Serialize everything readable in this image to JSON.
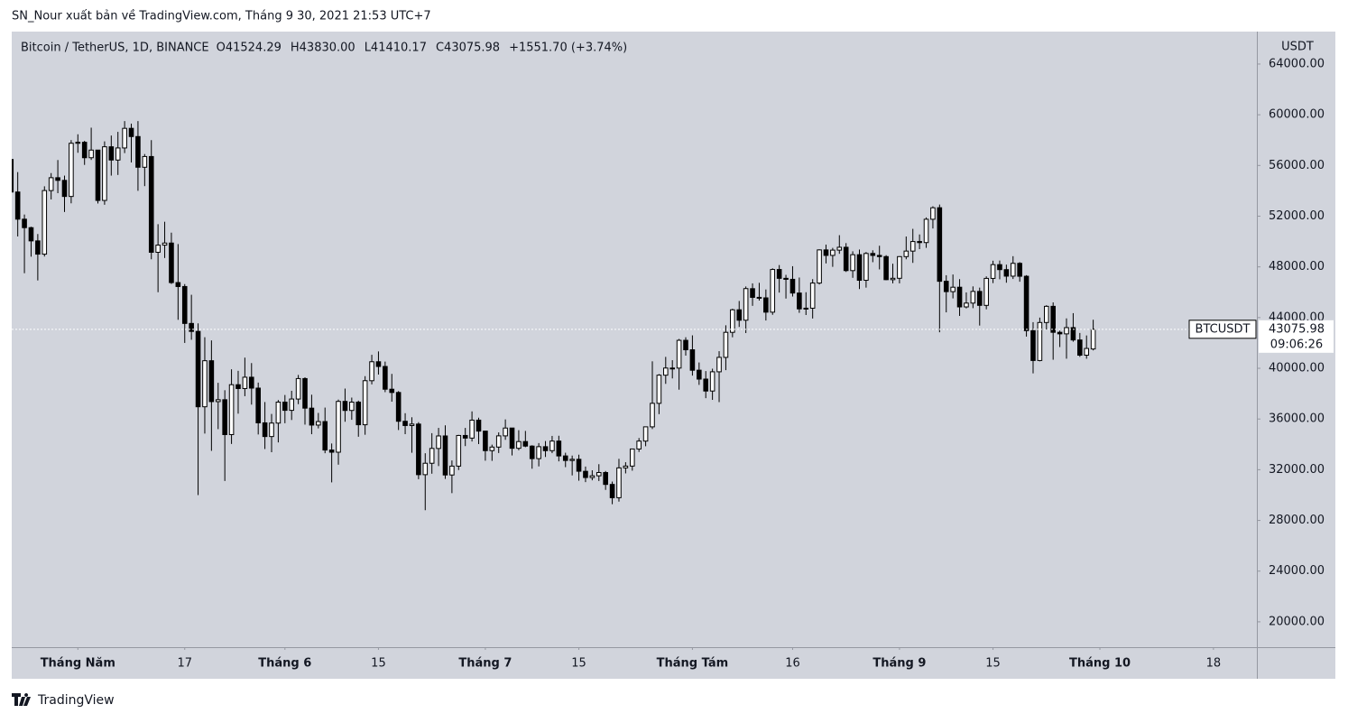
{
  "header": {
    "publisher": "SN_Nour xuất bản về TradingView.com, Tháng 9 30, 2021 21:53 UTC+7"
  },
  "footer": {
    "brand": "TradingView"
  },
  "chart_data": {
    "type": "candlestick",
    "symbol": "Bitcoin / TetherUS, 1D, BINANCE",
    "ohlc_labels": [
      "O41524.29",
      "H43830.00",
      "L41410.17",
      "C43075.98",
      "+1551.70 (+3.74%)"
    ],
    "axis_unit": "USDT",
    "price_tag": "BTCUSDT",
    "countdown": "09:06:26",
    "up_color": "#ffffff",
    "down_color": "#000000",
    "xlim": [
      0.1,
      186.5
    ],
    "xticks": [
      {
        "value": 10,
        "label": "Tháng Năm"
      },
      {
        "value": 26,
        "label": "17"
      },
      {
        "value": 41,
        "label": "Tháng 6"
      },
      {
        "value": 55,
        "label": "15"
      },
      {
        "value": 71,
        "label": "Tháng 7"
      },
      {
        "value": 85,
        "label": "15"
      },
      {
        "value": 102,
        "label": "Tháng Tám"
      },
      {
        "value": 117,
        "label": "16"
      },
      {
        "value": 133,
        "label": "Tháng 9"
      },
      {
        "value": 147,
        "label": "15"
      },
      {
        "value": 163,
        "label": "Tháng 10"
      },
      {
        "value": 180,
        "label": "18"
      }
    ],
    "ylim": [
      18000,
      66560
    ],
    "yticks": [
      {
        "value": 20000,
        "label": "20000.00"
      },
      {
        "value": 24000,
        "label": "24000.00"
      },
      {
        "value": 28000,
        "label": "28000.00"
      },
      {
        "value": 32000,
        "label": "32000.00"
      },
      {
        "value": 36000,
        "label": "36000.00"
      },
      {
        "value": 40000,
        "label": "40000.00"
      },
      {
        "value": 44000,
        "label": "44000.00"
      },
      {
        "value": 48000,
        "label": "48000.00"
      },
      {
        "value": 52000,
        "label": "52000.00"
      },
      {
        "value": 56000,
        "label": "56000.00"
      },
      {
        "value": 60000,
        "label": "60000.00"
      },
      {
        "value": 64000,
        "label": "64000.00"
      }
    ],
    "open": [
      56473,
      53906,
      51762,
      51093,
      50050,
      49004,
      54021,
      55033,
      54824,
      53555,
      57750,
      57828,
      56610,
      57213,
      53241,
      57473,
      56428,
      57380,
      58928,
      58280,
      55859,
      56704,
      49150,
      49716,
      49880,
      46760,
      46450,
      43538,
      42909,
      36964,
      40596,
      37371,
      37521,
      34770,
      38705,
      38402,
      39295,
      38436,
      35697,
      34616,
      35678,
      37332,
      36684,
      37575,
      39188,
      36856,
      35520,
      35796,
      33552,
      33380,
      37388,
      36675,
      37331,
      35546,
      39020,
      40516,
      40144,
      38349,
      38092,
      35820,
      35484,
      35600,
      31608,
      32509,
      33675,
      34663,
      31584,
      32283,
      34700,
      34494,
      35911,
      35045,
      33504,
      33786,
      34669,
      35288,
      33690,
      34220,
      33862,
      32875,
      33815,
      33502,
      34259,
      33086,
      32729,
      32820,
      31874,
      31383,
      31520,
      31778,
      30839,
      29790,
      32144,
      32287,
      33634,
      34258,
      35381,
      37237,
      39457,
      40019,
      40016,
      42206,
      41461,
      39850,
      39147,
      38207,
      39723,
      40862,
      42836,
      44614,
      43794,
      46280,
      45596,
      45555,
      44428,
      47793,
      47097,
      47019,
      45936,
      44686,
      44741,
      46723,
      49339,
      48905,
      49321,
      49546,
      47706,
      48960,
      46942,
      49058,
      48903,
      48811,
      46991,
      47100,
      48810,
      49246,
      50000,
      49918,
      51757,
      52666,
      46863,
      46048,
      46395,
      44842,
      45144,
      46063,
      44963,
      47092,
      48176,
      47783,
      47268,
      48278,
      47260,
      42970,
      40614,
      43612,
      44888,
      42838,
      42716,
      43208,
      42235,
      41034,
      41524.29
    ],
    "high": [
      56757,
      55477,
      52130,
      51167,
      50591,
      54356,
      55400,
      56428,
      55200,
      58000,
      58459,
      57940,
      58981,
      57213,
      57900,
      58360,
      58650,
      59500,
      59300,
      59500,
      56900,
      58000,
      51367,
      51560,
      50700,
      49800,
      46643,
      45800,
      43546,
      42451,
      42200,
      38855,
      38270,
      39920,
      39800,
      40841,
      40411,
      38872,
      37338,
      36400,
      37499,
      37894,
      38225,
      39476,
      39289,
      37917,
      36480,
      36900,
      34068,
      37534,
      38400,
      37690,
      37448,
      39380,
      41064,
      41330,
      40528,
      39559,
      38202,
      36457,
      36137,
      35750,
      33298,
      34881,
      35298,
      35500,
      32730,
      34749,
      35297,
      36600,
      36100,
      35057,
      33977,
      34945,
      35967,
      35293,
      35118,
      35059,
      33929,
      34100,
      34262,
      34666,
      34678,
      33340,
      33114,
      33185,
      32249,
      31955,
      32435,
      31899,
      31063,
      32858,
      32591,
      33650,
      34500,
      35398,
      40550,
      39542,
      40900,
      40640,
      42316,
      42448,
      42599,
      40459,
      39780,
      39969,
      41350,
      43392,
      44700,
      45310,
      46454,
      46700,
      46743,
      46218,
      47886,
      48144,
      47372,
      48053,
      47160,
      46000,
      47033,
      49382,
      49757,
      49500,
      50500,
      49875,
      49229,
      49368,
      49169,
      49309,
      49667,
      48925,
      48250,
      48845,
      50396,
      51000,
      50558,
      51900,
      52780,
      52920,
      47340,
      47399,
      47033,
      45987,
      46460,
      46364,
      47250,
      48486,
      48500,
      48177,
      48843,
      48372,
      47347,
      43639,
      44000,
      44978,
      45200,
      42970,
      43937,
      44350,
      42787,
      42590,
      43830
    ],
    "low": [
      53695,
      50400,
      47500,
      48805,
      46930,
      48817,
      53320,
      53813,
      52330,
      53013,
      57000,
      56044,
      56435,
      53000,
      52900,
      55200,
      55250,
      56975,
      56235,
      54000,
      54370,
      48600,
      46000,
      48700,
      46650,
      43825,
      42000,
      42250,
      30000,
      34850,
      33488,
      35200,
      31111,
      34031,
      36420,
      37800,
      37134,
      34779,
      33632,
      33379,
      34153,
      35666,
      35920,
      37170,
      35555,
      34800,
      35258,
      33300,
      31000,
      32396,
      35782,
      35937,
      34600,
      34757,
      38730,
      39506,
      38116,
      37365,
      35129,
      34803,
      33336,
      31251,
      28805,
      31684,
      32286,
      31275,
      30151,
      31973,
      33862,
      34225,
      34017,
      32711,
      32699,
      33316,
      34357,
      33125,
      33532,
      33777,
      32077,
      32261,
      33004,
      33306,
      32658,
      32202,
      31550,
      31133,
      31020,
      31164,
      31108,
      30407,
      29278,
      29482,
      31708,
      31924,
      33401,
      33851,
      35205,
      36383,
      38772,
      39200,
      38313,
      41000,
      39422,
      38690,
      37642,
      37508,
      37332,
      39853,
      42446,
      43261,
      42779,
      44926,
      45341,
      43770,
      44217,
      45971,
      45500,
      45660,
      44376,
      44203,
      43927,
      46611,
      48273,
      48003,
      49030,
      47600,
      47136,
      46250,
      46363,
      48370,
      47800,
      46950,
      46700,
      46700,
      48600,
      48316,
      49400,
      49500,
      51028,
      42843,
      44412,
      45513,
      44132,
      44722,
      44742,
      43370,
      44650,
      46719,
      47020,
      46750,
      47045,
      46829,
      42500,
      39600,
      40550,
      43063,
      40675,
      41675,
      40756,
      42098,
      40903,
      40753,
      41410.17
    ],
    "close": [
      53906,
      51763,
      51093,
      50050,
      49004,
      54021,
      55033,
      54824,
      53555,
      57750,
      57828,
      56610,
      57213,
      53241,
      57473,
      56428,
      57380,
      58928,
      58280,
      55859,
      56704,
      49150,
      49716,
      49880,
      46760,
      46450,
      43538,
      42909,
      36964,
      40596,
      37371,
      37521,
      34770,
      38705,
      38402,
      39295,
      38436,
      35697,
      34616,
      35678,
      37332,
      36684,
      37575,
      39188,
      36856,
      35520,
      35796,
      33552,
      33380,
      37388,
      36675,
      37331,
      35546,
      39020,
      40516,
      40144,
      38349,
      38092,
      35820,
      35484,
      35600,
      31608,
      32509,
      33678,
      34663,
      31584,
      32283,
      34700,
      34494,
      35911,
      35045,
      33504,
      33786,
      34669,
      35286,
      33690,
      34220,
      33862,
      32875,
      33815,
      33502,
      34259,
      33086,
      32729,
      32820,
      31880,
      31383,
      31520,
      31778,
      30839,
      29790,
      32144,
      32287,
      33634,
      34258,
      35381,
      37237,
      39457,
      40019,
      40016,
      42206,
      41461,
      39845,
      39147,
      38207,
      39723,
      40862,
      42836,
      44614,
      43792,
      46285,
      45595,
      45554,
      44428,
      47793,
      47096,
      47019,
      45936,
      44686,
      44741,
      46723,
      49339,
      48905,
      49321,
      49546,
      47707,
      48960,
      46942,
      49058,
      48903,
      48811,
      46991,
      47100,
      48810,
      49246,
      49999,
      49915,
      51756,
      52663,
      46863,
      46048,
      46395,
      44843,
      45144,
      46063,
      44963,
      47092,
      48176,
      47783,
      47268,
      48278,
      47260,
      42970,
      40614,
      43612,
      44888,
      42838,
      42716,
      43208,
      42235,
      41034,
      41564,
      43075.98
    ]
  }
}
